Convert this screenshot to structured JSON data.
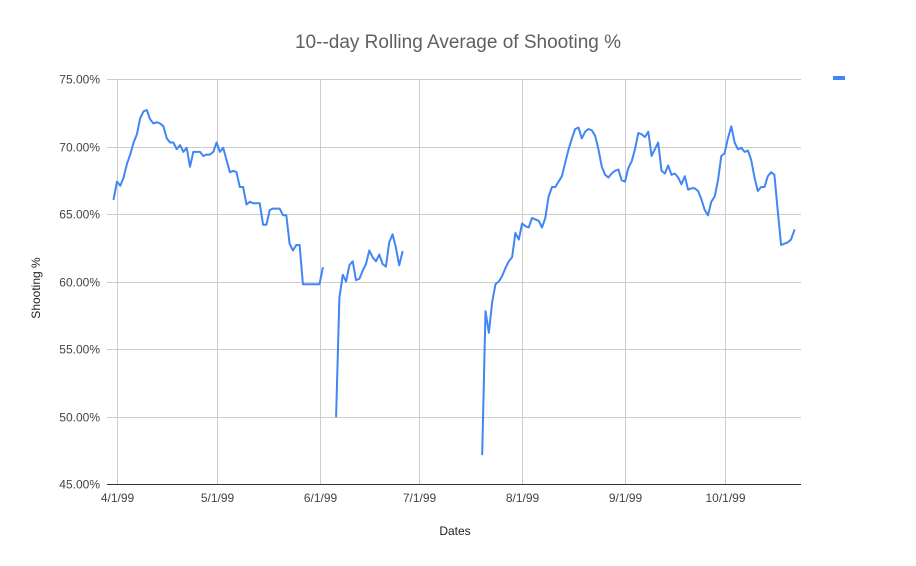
{
  "chart_data": {
    "type": "line",
    "title": "10--day Rolling Average of Shooting %",
    "xlabel": "Dates",
    "ylabel": "Shooting %",
    "x_axis_type": "date",
    "xlim": [
      "1999-03-29",
      "1999-10-24"
    ],
    "ylim": [
      45,
      75
    ],
    "yticks": [
      45,
      50,
      55,
      60,
      65,
      70,
      75
    ],
    "ytick_labels": [
      "45.00%",
      "50.00%",
      "55.00%",
      "60.00%",
      "65.00%",
      "70.00%",
      "75.00%"
    ],
    "xticks": [
      "1999-04-01",
      "1999-05-01",
      "1999-06-01",
      "1999-07-01",
      "1999-08-01",
      "1999-09-01",
      "1999-10-01"
    ],
    "xtick_labels": [
      "4/1/99",
      "5/1/99",
      "6/1/99",
      "7/1/99",
      "8/1/99",
      "9/1/99",
      "10/1/99"
    ],
    "grid": true,
    "legend": {
      "position": "top-right",
      "entries": [
        {
          "name": "",
          "color": "#4285f4"
        }
      ]
    },
    "series": [
      {
        "color": "#4285f4",
        "segments": [
          [
            [
              "1999-03-31",
              66.1
            ],
            [
              "1999-04-01",
              67.4
            ],
            [
              "1999-04-02",
              67.1
            ],
            [
              "1999-04-03",
              67.7
            ],
            [
              "1999-04-04",
              68.7
            ],
            [
              "1999-04-05",
              69.4
            ],
            [
              "1999-04-06",
              70.3
            ],
            [
              "1999-04-07",
              70.9
            ],
            [
              "1999-04-08",
              72.1
            ],
            [
              "1999-04-09",
              72.6
            ],
            [
              "1999-04-10",
              72.7
            ],
            [
              "1999-04-11",
              72.0
            ],
            [
              "1999-04-12",
              71.7
            ],
            [
              "1999-04-13",
              71.8
            ],
            [
              "1999-04-14",
              71.7
            ],
            [
              "1999-04-15",
              71.5
            ],
            [
              "1999-04-16",
              70.6
            ],
            [
              "1999-04-17",
              70.3
            ],
            [
              "1999-04-18",
              70.3
            ],
            [
              "1999-04-19",
              69.8
            ],
            [
              "1999-04-20",
              70.1
            ],
            [
              "1999-04-21",
              69.6
            ],
            [
              "1999-04-22",
              69.9
            ],
            [
              "1999-04-23",
              68.5
            ],
            [
              "1999-04-24",
              69.6
            ],
            [
              "1999-04-25",
              69.6
            ],
            [
              "1999-04-26",
              69.6
            ],
            [
              "1999-04-27",
              69.3
            ],
            [
              "1999-04-28",
              69.4
            ],
            [
              "1999-04-29",
              69.4
            ],
            [
              "1999-04-30",
              69.6
            ],
            [
              "1999-05-01",
              70.3
            ],
            [
              "1999-05-02",
              69.6
            ],
            [
              "1999-05-03",
              69.9
            ],
            [
              "1999-05-04",
              69.0
            ],
            [
              "1999-05-05",
              68.1
            ],
            [
              "1999-05-06",
              68.2
            ],
            [
              "1999-05-07",
              68.1
            ],
            [
              "1999-05-08",
              67.0
            ],
            [
              "1999-05-09",
              67.0
            ],
            [
              "1999-05-10",
              65.7
            ],
            [
              "1999-05-11",
              65.9
            ],
            [
              "1999-05-12",
              65.8
            ],
            [
              "1999-05-13",
              65.8
            ],
            [
              "1999-05-14",
              65.8
            ],
            [
              "1999-05-15",
              64.2
            ],
            [
              "1999-05-16",
              64.2
            ],
            [
              "1999-05-17",
              65.3
            ],
            [
              "1999-05-18",
              65.4
            ],
            [
              "1999-05-19",
              65.4
            ],
            [
              "1999-05-20",
              65.4
            ],
            [
              "1999-05-21",
              64.9
            ],
            [
              "1999-05-22",
              64.9
            ],
            [
              "1999-05-23",
              62.8
            ],
            [
              "1999-05-24",
              62.3
            ],
            [
              "1999-05-25",
              62.7
            ],
            [
              "1999-05-26",
              62.7
            ],
            [
              "1999-05-27",
              59.8
            ],
            [
              "1999-05-28",
              59.8
            ],
            [
              "1999-05-29",
              59.8
            ],
            [
              "1999-05-30",
              59.8
            ],
            [
              "1999-05-31",
              59.8
            ],
            [
              "1999-06-01",
              59.8
            ],
            [
              "1999-06-02",
              61.0
            ]
          ],
          [
            [
              "1999-06-06",
              50.0
            ],
            [
              "1999-06-07",
              58.8
            ],
            [
              "1999-06-08",
              60.5
            ],
            [
              "1999-06-09",
              60.0
            ],
            [
              "1999-06-10",
              61.2
            ],
            [
              "1999-06-11",
              61.5
            ],
            [
              "1999-06-12",
              60.1
            ],
            [
              "1999-06-13",
              60.2
            ],
            [
              "1999-06-14",
              60.8
            ],
            [
              "1999-06-15",
              61.3
            ],
            [
              "1999-06-16",
              62.3
            ],
            [
              "1999-06-17",
              61.8
            ],
            [
              "1999-06-18",
              61.5
            ],
            [
              "1999-06-19",
              62.0
            ],
            [
              "1999-06-20",
              61.3
            ],
            [
              "1999-06-21",
              61.1
            ],
            [
              "1999-06-22",
              62.9
            ],
            [
              "1999-06-23",
              63.5
            ],
            [
              "1999-06-24",
              62.5
            ],
            [
              "1999-06-25",
              61.2
            ],
            [
              "1999-06-26",
              62.2
            ]
          ],
          [
            [
              "1999-07-20",
              47.2
            ],
            [
              "1999-07-21",
              57.8
            ],
            [
              "1999-07-22",
              56.2
            ],
            [
              "1999-07-23",
              58.5
            ],
            [
              "1999-07-24",
              59.8
            ],
            [
              "1999-07-25",
              60.0
            ],
            [
              "1999-07-26",
              60.4
            ],
            [
              "1999-07-27",
              61.0
            ],
            [
              "1999-07-28",
              61.5
            ],
            [
              "1999-07-29",
              61.8
            ],
            [
              "1999-07-30",
              63.6
            ],
            [
              "1999-07-31",
              63.1
            ],
            [
              "1999-08-01",
              64.3
            ],
            [
              "1999-08-02",
              64.1
            ],
            [
              "1999-08-03",
              64.0
            ],
            [
              "1999-08-04",
              64.7
            ],
            [
              "1999-08-05",
              64.6
            ],
            [
              "1999-08-06",
              64.5
            ],
            [
              "1999-08-07",
              64.0
            ],
            [
              "1999-08-08",
              64.7
            ],
            [
              "1999-08-09",
              66.3
            ],
            [
              "1999-08-10",
              67.0
            ],
            [
              "1999-08-11",
              67.0
            ],
            [
              "1999-08-12",
              67.4
            ],
            [
              "1999-08-13",
              67.8
            ],
            [
              "1999-08-14",
              68.8
            ],
            [
              "1999-08-15",
              69.8
            ],
            [
              "1999-08-16",
              70.6
            ],
            [
              "1999-08-17",
              71.3
            ],
            [
              "1999-08-18",
              71.4
            ],
            [
              "1999-08-19",
              70.6
            ],
            [
              "1999-08-20",
              71.1
            ],
            [
              "1999-08-21",
              71.3
            ],
            [
              "1999-08-22",
              71.2
            ],
            [
              "1999-08-23",
              70.8
            ],
            [
              "1999-08-24",
              69.8
            ],
            [
              "1999-08-25",
              68.5
            ],
            [
              "1999-08-26",
              67.9
            ],
            [
              "1999-08-27",
              67.7
            ],
            [
              "1999-08-28",
              68.0
            ],
            [
              "1999-08-29",
              68.2
            ],
            [
              "1999-08-30",
              68.3
            ],
            [
              "1999-08-31",
              67.5
            ],
            [
              "1999-09-01",
              67.4
            ],
            [
              "1999-09-02",
              68.4
            ],
            [
              "1999-09-03",
              68.9
            ],
            [
              "1999-09-04",
              69.8
            ],
            [
              "1999-09-05",
              71.0
            ],
            [
              "1999-09-06",
              70.9
            ],
            [
              "1999-09-07",
              70.7
            ],
            [
              "1999-09-08",
              71.1
            ],
            [
              "1999-09-09",
              69.3
            ],
            [
              "1999-09-10",
              69.8
            ],
            [
              "1999-09-11",
              70.3
            ],
            [
              "1999-09-12",
              68.2
            ],
            [
              "1999-09-13",
              68.0
            ],
            [
              "1999-09-14",
              68.6
            ],
            [
              "1999-09-15",
              67.9
            ],
            [
              "1999-09-16",
              68.0
            ],
            [
              "1999-09-17",
              67.7
            ],
            [
              "1999-09-18",
              67.2
            ],
            [
              "1999-09-19",
              67.8
            ],
            [
              "1999-09-20",
              66.8
            ],
            [
              "1999-09-21",
              66.9
            ],
            [
              "1999-09-22",
              66.9
            ],
            [
              "1999-09-23",
              66.7
            ],
            [
              "1999-09-24",
              66.1
            ],
            [
              "1999-09-25",
              65.3
            ],
            [
              "1999-09-26",
              64.9
            ],
            [
              "1999-09-27",
              65.9
            ],
            [
              "1999-09-28",
              66.3
            ],
            [
              "1999-09-29",
              67.5
            ],
            [
              "1999-09-30",
              69.3
            ],
            [
              "1999-10-01",
              69.5
            ],
            [
              "1999-10-02",
              70.6
            ],
            [
              "1999-10-03",
              71.5
            ],
            [
              "1999-10-04",
              70.3
            ],
            [
              "1999-10-05",
              69.8
            ],
            [
              "1999-10-06",
              69.9
            ],
            [
              "1999-10-07",
              69.6
            ],
            [
              "1999-10-08",
              69.7
            ],
            [
              "1999-10-09",
              69.0
            ],
            [
              "1999-10-10",
              67.7
            ],
            [
              "1999-10-11",
              66.7
            ],
            [
              "1999-10-12",
              67.0
            ],
            [
              "1999-10-13",
              67.0
            ],
            [
              "1999-10-14",
              67.8
            ],
            [
              "1999-10-15",
              68.1
            ],
            [
              "1999-10-16",
              67.9
            ],
            [
              "1999-10-17",
              65.2
            ],
            [
              "1999-10-18",
              62.7
            ],
            [
              "1999-10-19",
              62.8
            ],
            [
              "1999-10-20",
              62.9
            ],
            [
              "1999-10-21",
              63.1
            ],
            [
              "1999-10-22",
              63.8
            ]
          ]
        ]
      }
    ]
  }
}
